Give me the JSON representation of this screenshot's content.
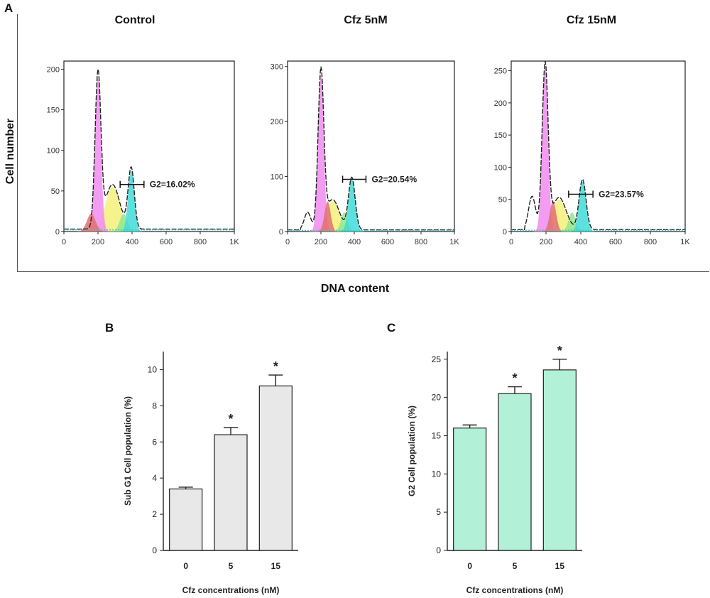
{
  "panel_a": {
    "label": "A",
    "y_title": "Cell number",
    "x_title": "DNA content",
    "histograms": [
      {
        "title": "Control",
        "gate_label": "G2=16.02%",
        "y_ticks": [
          "0",
          "50",
          "100",
          "150",
          "200"
        ],
        "x_ticks": [
          "0",
          "200",
          "400",
          "600",
          "800",
          "1K"
        ]
      },
      {
        "title": "Cfz 5nM",
        "gate_label": "G2=20.54%",
        "y_ticks": [
          "0",
          "100",
          "200",
          "300"
        ],
        "x_ticks": [
          "0",
          "200",
          "400",
          "600",
          "800",
          "1K"
        ]
      },
      {
        "title": "Cfz 15nM",
        "gate_label": "G2=23.57%",
        "y_ticks": [
          "0",
          "50",
          "100",
          "150",
          "200",
          "250"
        ],
        "x_ticks": [
          "0",
          "200",
          "400",
          "600",
          "800",
          "1K"
        ]
      }
    ]
  },
  "colors": {
    "g1": "#f08cf0",
    "s_phase": "#f4f07a",
    "g2": "#40dcd8",
    "sub_g1": "#e07070",
    "green": "#90e890",
    "bar_b": "#e8e8e8",
    "bar_c": "#b2f0d8"
  },
  "chart_data": [
    {
      "type": "bar",
      "panel": "B",
      "categories": [
        "0",
        "5",
        "15"
      ],
      "values": [
        3.4,
        6.4,
        9.1
      ],
      "errors": [
        0.1,
        0.4,
        0.6
      ],
      "significance": [
        "",
        "*",
        "*"
      ],
      "xlabel": "Cfz concentrations (nM)",
      "ylabel": "Sub G1 Cell population (%)",
      "ylim": [
        0,
        11
      ],
      "y_ticks": [
        0,
        2,
        4,
        6,
        8,
        10
      ]
    },
    {
      "type": "bar",
      "panel": "C",
      "categories": [
        "0",
        "5",
        "15"
      ],
      "values": [
        16.0,
        20.5,
        23.6
      ],
      "errors": [
        0.4,
        0.9,
        1.4
      ],
      "significance": [
        "",
        "*",
        "*"
      ],
      "xlabel": "Cfz concentrations (nM)",
      "ylabel": "G2 Cell population (%)",
      "ylim": [
        0,
        26
      ],
      "y_ticks": [
        0,
        5,
        10,
        15,
        20,
        25
      ]
    }
  ]
}
